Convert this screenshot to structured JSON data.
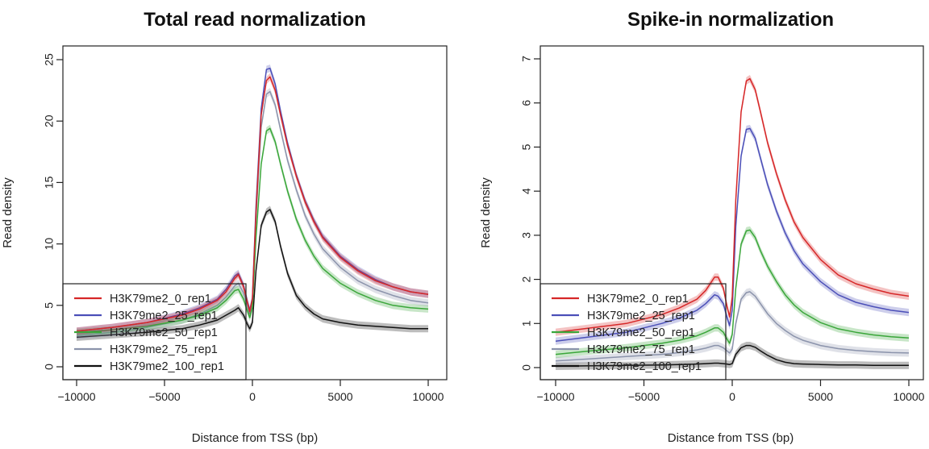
{
  "colors": {
    "H3K79me2_0_rep1": "#d62728",
    "H3K79me2_25_rep1": "#4b4fb8",
    "H3K79me2_50_rep1": "#3aa63a",
    "H3K79me2_75_rep1": "#8b93ab",
    "H3K79me2_100_rep1": "#111111"
  },
  "chart_data": [
    {
      "type": "line",
      "title": "Total read normalization",
      "xlabel": "Distance from TSS (bp)",
      "ylabel": "Read density",
      "xlim": [
        -10000,
        10000
      ],
      "ylim": [
        0,
        25
      ],
      "xticks": [
        -10000,
        -5000,
        0,
        5000,
        10000
      ],
      "xtick_labels": [
        "−10000",
        "−5000",
        "0",
        "5000",
        "10000"
      ],
      "yticks": [
        0,
        5,
        10,
        15,
        20,
        25
      ],
      "ytick_labels": [
        "0",
        "5",
        "10",
        "15",
        "20",
        "25"
      ],
      "grid": false,
      "legend_position": "bottom-left",
      "x": [
        -10000,
        -8000,
        -6000,
        -4000,
        -3000,
        -2000,
        -1500,
        -1000,
        -800,
        -500,
        -300,
        -150,
        0,
        200,
        500,
        800,
        1000,
        1300,
        1600,
        2000,
        2500,
        3000,
        3500,
        4000,
        5000,
        6000,
        7000,
        8000,
        9000,
        10000
      ],
      "series": [
        {
          "name": "H3K79me2_0_rep1",
          "values": [
            2.9,
            3.2,
            3.6,
            4.2,
            4.7,
            5.4,
            6.1,
            7.2,
            7.5,
            6.5,
            5.3,
            4.5,
            5.5,
            12.5,
            20.5,
            23.3,
            23.6,
            22.5,
            20.5,
            18.0,
            15.5,
            13.4,
            11.8,
            10.5,
            8.9,
            7.8,
            7.0,
            6.5,
            6.1,
            5.9
          ]
        },
        {
          "name": "H3K79me2_25_rep1",
          "values": [
            2.9,
            3.2,
            3.6,
            4.3,
            4.8,
            5.5,
            6.3,
            7.4,
            7.6,
            6.6,
            5.4,
            4.6,
            5.6,
            13.0,
            21.0,
            24.2,
            24.3,
            23.0,
            20.8,
            18.2,
            15.6,
            13.5,
            11.9,
            10.6,
            9.0,
            7.9,
            7.1,
            6.5,
            6.1,
            5.9
          ]
        },
        {
          "name": "H3K79me2_50_rep1",
          "values": [
            2.8,
            3.0,
            3.3,
            3.8,
            4.2,
            4.8,
            5.4,
            6.2,
            6.3,
            5.5,
            4.6,
            4.0,
            4.8,
            10.5,
            16.5,
            19.2,
            19.4,
            18.3,
            16.5,
            14.3,
            12.0,
            10.3,
            9.0,
            8.0,
            6.8,
            6.0,
            5.4,
            5.0,
            4.8,
            4.7
          ]
        },
        {
          "name": "H3K79me2_75_rep1",
          "values": [
            2.5,
            2.8,
            3.2,
            3.8,
            4.3,
            5.0,
            5.7,
            6.6,
            6.8,
            6.0,
            5.0,
            4.3,
            5.1,
            12.0,
            19.5,
            22.2,
            22.4,
            21.3,
            19.3,
            16.8,
            14.4,
            12.3,
            10.8,
            9.6,
            8.1,
            7.0,
            6.3,
            5.8,
            5.4,
            5.2
          ]
        },
        {
          "name": "H3K79me2_100_rep1",
          "values": [
            2.4,
            2.6,
            2.8,
            3.1,
            3.4,
            3.8,
            4.2,
            4.6,
            4.8,
            4.2,
            3.5,
            3.1,
            3.6,
            7.8,
            11.5,
            12.6,
            12.8,
            11.8,
            9.8,
            7.6,
            5.8,
            4.9,
            4.3,
            3.9,
            3.6,
            3.4,
            3.3,
            3.2,
            3.1,
            3.1
          ]
        }
      ]
    },
    {
      "type": "line",
      "title": "Spike-in normalization",
      "xlabel": "Distance from TSS (bp)",
      "ylabel": "Read density",
      "xlim": [
        -10000,
        10000
      ],
      "ylim": [
        0,
        7
      ],
      "xticks": [
        -10000,
        -5000,
        0,
        5000,
        10000
      ],
      "xtick_labels": [
        "−10000",
        "−5000",
        "0",
        "5000",
        "10000"
      ],
      "yticks": [
        0,
        1,
        2,
        3,
        4,
        5,
        6,
        7
      ],
      "ytick_labels": [
        "0",
        "1",
        "2",
        "3",
        "4",
        "5",
        "6",
        "7"
      ],
      "grid": false,
      "legend_position": "bottom-left",
      "x": [
        -10000,
        -8000,
        -6000,
        -4000,
        -3000,
        -2000,
        -1500,
        -1000,
        -800,
        -500,
        -300,
        -150,
        0,
        200,
        500,
        800,
        1000,
        1300,
        1600,
        2000,
        2500,
        3000,
        3500,
        4000,
        5000,
        6000,
        7000,
        8000,
        9000,
        10000
      ],
      "series": [
        {
          "name": "H3K79me2_0_rep1",
          "values": [
            0.8,
            0.9,
            1.0,
            1.2,
            1.35,
            1.55,
            1.75,
            2.05,
            2.05,
            1.8,
            1.4,
            1.15,
            1.6,
            3.8,
            5.8,
            6.5,
            6.55,
            6.3,
            5.8,
            5.1,
            4.4,
            3.8,
            3.3,
            2.95,
            2.45,
            2.1,
            1.9,
            1.78,
            1.68,
            1.62
          ]
        },
        {
          "name": "H3K79me2_25_rep1",
          "values": [
            0.6,
            0.7,
            0.8,
            1.0,
            1.12,
            1.3,
            1.45,
            1.65,
            1.62,
            1.45,
            1.15,
            0.95,
            1.3,
            3.2,
            4.8,
            5.4,
            5.42,
            5.2,
            4.75,
            4.15,
            3.55,
            3.05,
            2.65,
            2.35,
            1.95,
            1.65,
            1.48,
            1.38,
            1.3,
            1.25
          ]
        },
        {
          "name": "H3K79me2_50_rep1",
          "values": [
            0.3,
            0.38,
            0.45,
            0.55,
            0.62,
            0.72,
            0.8,
            0.9,
            0.9,
            0.8,
            0.65,
            0.55,
            0.75,
            1.8,
            2.8,
            3.1,
            3.12,
            2.95,
            2.65,
            2.3,
            1.95,
            1.65,
            1.42,
            1.25,
            1.02,
            0.88,
            0.8,
            0.74,
            0.7,
            0.67
          ]
        },
        {
          "name": "H3K79me2_75_rep1",
          "values": [
            0.15,
            0.2,
            0.25,
            0.3,
            0.34,
            0.4,
            0.44,
            0.5,
            0.5,
            0.45,
            0.38,
            0.33,
            0.42,
            1.0,
            1.55,
            1.7,
            1.72,
            1.62,
            1.45,
            1.22,
            1.0,
            0.84,
            0.71,
            0.62,
            0.5,
            0.43,
            0.39,
            0.36,
            0.34,
            0.33
          ]
        },
        {
          "name": "H3K79me2_100_rep1",
          "values": [
            0.03,
            0.04,
            0.05,
            0.06,
            0.07,
            0.08,
            0.09,
            0.1,
            0.1,
            0.09,
            0.08,
            0.07,
            0.09,
            0.3,
            0.45,
            0.5,
            0.5,
            0.46,
            0.38,
            0.28,
            0.18,
            0.12,
            0.09,
            0.08,
            0.07,
            0.06,
            0.06,
            0.05,
            0.05,
            0.05
          ]
        }
      ]
    }
  ]
}
